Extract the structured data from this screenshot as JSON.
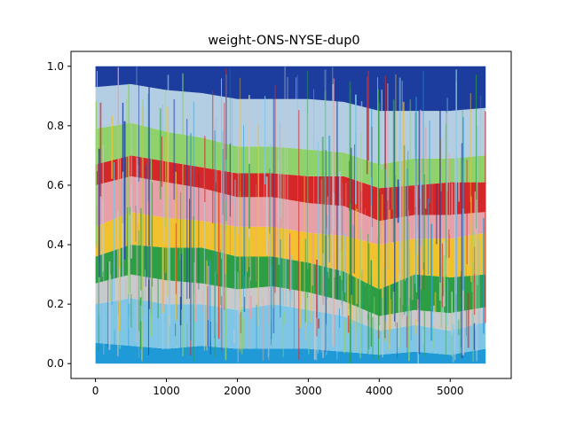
{
  "chart_data": {
    "type": "area",
    "title": "weight-ONS-NYSE-dup0",
    "xlabel": "",
    "ylabel": "",
    "xlim": [
      -345,
      5860
    ],
    "ylim": [
      -0.05,
      1.05
    ],
    "x_range": [
      0,
      5500
    ],
    "stacked": true,
    "grid": false,
    "legend": "none",
    "x_ticks": [
      0,
      1000,
      2000,
      3000,
      4000,
      5000
    ],
    "y_ticks": [
      0.0,
      0.2,
      0.4,
      0.6,
      0.8,
      1.0
    ],
    "x_tick_labels": [
      "0",
      "1000",
      "2000",
      "3000",
      "4000",
      "5000"
    ],
    "y_tick_labels": [
      "0.0",
      "0.2",
      "0.4",
      "0.6",
      "0.8",
      "1.0"
    ],
    "series_colors": [
      "#1f9ad6",
      "#7fc6e6",
      "#c9c9c9",
      "#2e9e44",
      "#f2c12e",
      "#e8a0a8",
      "#d62728",
      "#8fd16b",
      "#b3cde3",
      "#1c3d9e"
    ],
    "x_samples": [
      0,
      500,
      1000,
      1500,
      2000,
      2500,
      3000,
      3500,
      4000,
      4500,
      5000,
      5500
    ],
    "series": [
      {
        "values": [
          0.07,
          0.06,
          0.05,
          0.06,
          0.05,
          0.05,
          0.05,
          0.04,
          0.03,
          0.04,
          0.03,
          0.05
        ]
      },
      {
        "values": [
          0.13,
          0.16,
          0.15,
          0.14,
          0.13,
          0.15,
          0.13,
          0.12,
          0.08,
          0.09,
          0.08,
          0.09
        ]
      },
      {
        "values": [
          0.07,
          0.08,
          0.08,
          0.07,
          0.07,
          0.06,
          0.06,
          0.05,
          0.05,
          0.05,
          0.06,
          0.05
        ]
      },
      {
        "values": [
          0.09,
          0.1,
          0.11,
          0.12,
          0.11,
          0.1,
          0.1,
          0.1,
          0.09,
          0.12,
          0.12,
          0.11
        ]
      },
      {
        "values": [
          0.1,
          0.11,
          0.1,
          0.09,
          0.1,
          0.1,
          0.1,
          0.12,
          0.15,
          0.12,
          0.13,
          0.14
        ]
      },
      {
        "values": [
          0.14,
          0.12,
          0.12,
          0.11,
          0.1,
          0.1,
          0.1,
          0.1,
          0.08,
          0.08,
          0.08,
          0.07
        ]
      },
      {
        "values": [
          0.07,
          0.07,
          0.07,
          0.07,
          0.08,
          0.08,
          0.09,
          0.1,
          0.11,
          0.1,
          0.11,
          0.1
        ]
      },
      {
        "values": [
          0.12,
          0.11,
          0.1,
          0.1,
          0.09,
          0.09,
          0.09,
          0.08,
          0.08,
          0.09,
          0.08,
          0.09
        ]
      },
      {
        "values": [
          0.14,
          0.13,
          0.14,
          0.15,
          0.16,
          0.16,
          0.17,
          0.17,
          0.18,
          0.16,
          0.16,
          0.16
        ]
      },
      {
        "values": [
          0.07,
          0.06,
          0.08,
          0.09,
          0.11,
          0.11,
          0.11,
          0.12,
          0.15,
          0.15,
          0.15,
          0.14
        ]
      }
    ]
  }
}
